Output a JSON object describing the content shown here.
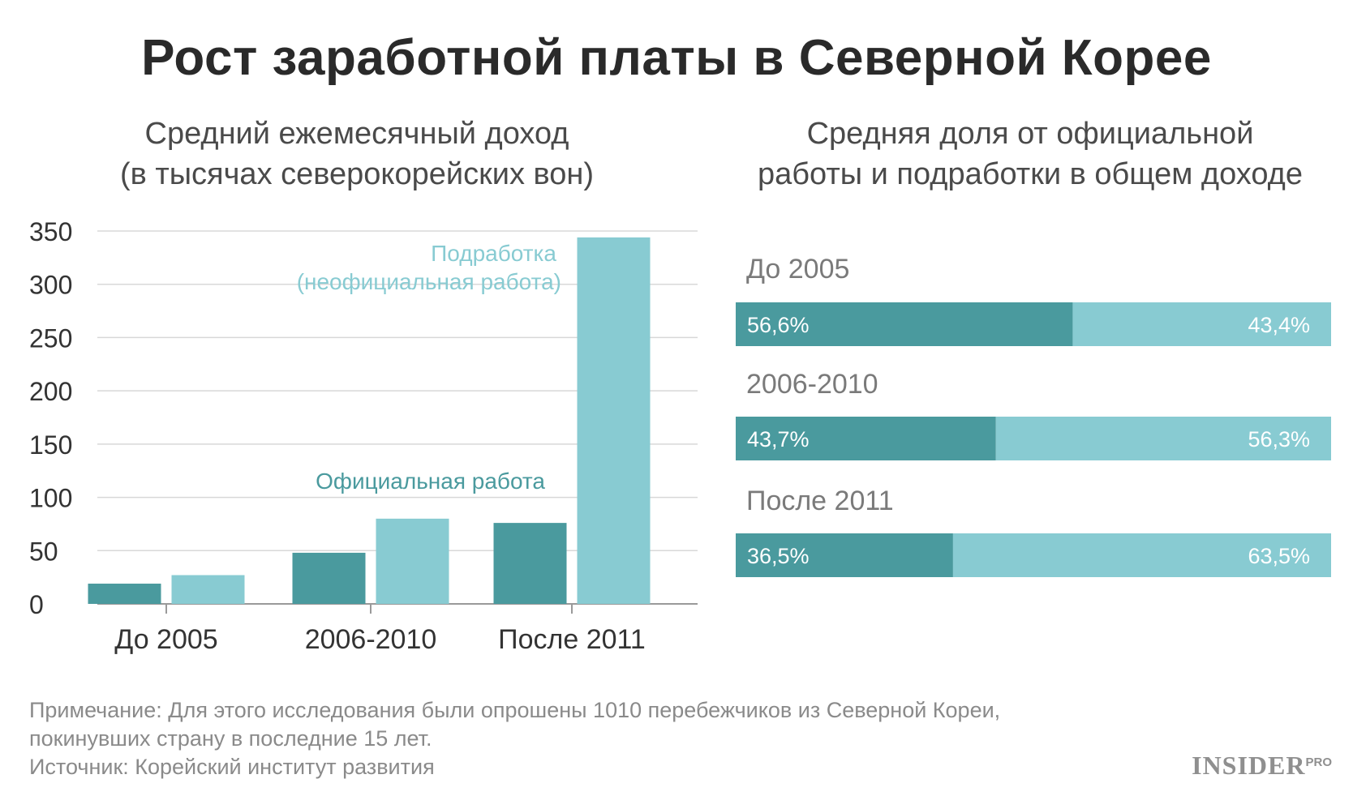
{
  "title": "Рост заработной платы в Северной Корее",
  "colors": {
    "official": "#4a9a9e",
    "side": "#88cbd2",
    "grid": "#d8d8d8"
  },
  "chart_data": [
    {
      "type": "bar",
      "title": "Средний ежемесячный доход (в тысячах северокорейских вон)",
      "title_lines": [
        "Средний ежемесячный доход",
        "(в тысячах северокорейских вон)"
      ],
      "categories": [
        "До 2005",
        "2006-2010",
        "После 2011"
      ],
      "series": [
        {
          "name": "Официальная работа",
          "values": [
            19,
            48,
            76
          ],
          "color": "#4a9a9e"
        },
        {
          "name": "Подработка (неофициальная работа)",
          "name_lines": [
            "Подработка",
            "(неофициальная работа)"
          ],
          "values": [
            27,
            80,
            344
          ],
          "color": "#88cbd2"
        }
      ],
      "yticks": [
        0,
        50,
        100,
        150,
        200,
        250,
        300,
        350
      ],
      "ylim": [
        0,
        350
      ],
      "grid": true,
      "legend": "inline labels"
    },
    {
      "type": "bar",
      "orientation": "horizontal-stacked-100",
      "title": "Средняя доля от официальной работы и подработки в общем доходе",
      "title_lines": [
        "Средняя доля от официальной",
        "работы и подработки в общем доходе"
      ],
      "categories": [
        "До 2005",
        "2006-2010",
        "После 2011"
      ],
      "series": [
        {
          "name": "Официальная работа",
          "values": [
            56.6,
            43.7,
            36.5
          ],
          "labels": [
            "56,6%",
            "43,7%",
            "36,5%"
          ],
          "color": "#4a9a9e"
        },
        {
          "name": "Подработка",
          "values": [
            43.4,
            56.3,
            63.5
          ],
          "labels": [
            "43,4%",
            "56,3%",
            "63,5%"
          ],
          "color": "#88cbd2"
        }
      ]
    }
  ],
  "notes": {
    "line1": "Примечание: Для этого исследования были опрошены 1010 перебежчиков из Северной Кореи,",
    "line2": "покинувших страну в последние 15 лет.",
    "source": "Источник: Корейский институт развития"
  },
  "logo": {
    "main": "INSIDER",
    "suffix": "PRO"
  }
}
